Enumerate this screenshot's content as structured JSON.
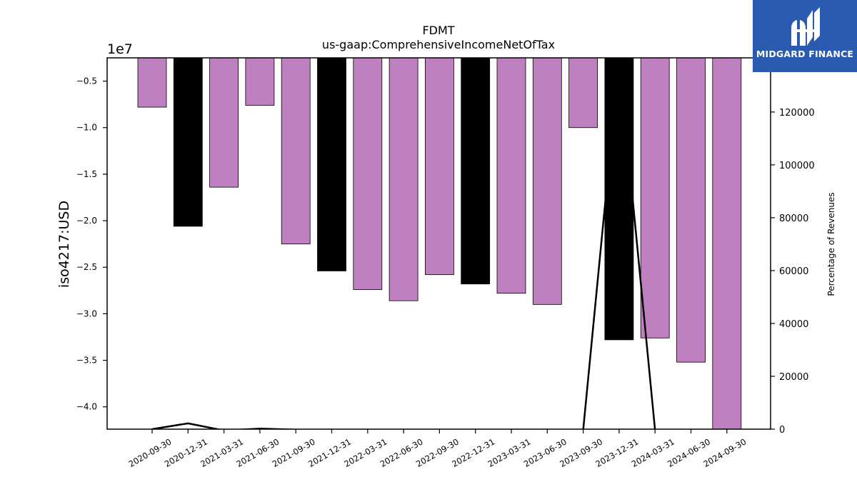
{
  "brand": {
    "name": "MIDGARD FINANCE",
    "color": "#2b5bb0"
  },
  "chart_data": {
    "type": "bar",
    "title": "FDMT",
    "subtitle": "us-gaap:ComprehensiveIncomeNetOfTax",
    "ylabel": "iso4217:USD",
    "y_offset_label": "1e7",
    "y2label": "Percentage of Revenues",
    "ylim": [
      -42400000,
      -2500000
    ],
    "y2lim": [
      0,
      140500
    ],
    "yticks": [
      -0.5,
      -1.0,
      -1.5,
      -2.0,
      -2.5,
      -3.0,
      -3.5,
      -4.0
    ],
    "y2ticks": [
      0,
      20000,
      40000,
      60000,
      80000,
      100000,
      120000
    ],
    "grid": false,
    "categories": [
      "2020-09-30",
      "2020-12-31",
      "2021-03-31",
      "2021-06-30",
      "2021-09-30",
      "2021-12-31",
      "2022-03-31",
      "2022-06-30",
      "2022-09-30",
      "2022-12-31",
      "2023-03-31",
      "2023-06-30",
      "2023-09-30",
      "2023-12-31",
      "2024-03-31",
      "2024-06-30",
      "2024-09-30"
    ],
    "series": [
      {
        "type": "bar",
        "axis": "left",
        "values": [
          -7800000,
          -20600000,
          -16400000,
          -7600000,
          -22500000,
          -25400000,
          -27400000,
          -28600000,
          -25800000,
          -26800000,
          -27800000,
          -29000000,
          -10000000,
          -32800000,
          -32600000,
          -35200000,
          -42400000
        ],
        "colors": [
          "#bf80bf",
          "#000000",
          "#bf80bf",
          "#bf80bf",
          "#bf80bf",
          "#000000",
          "#bf80bf",
          "#bf80bf",
          "#bf80bf",
          "#000000",
          "#bf80bf",
          "#bf80bf",
          "#bf80bf",
          "#000000",
          "#bf80bf",
          "#bf80bf",
          "#bf80bf"
        ]
      },
      {
        "type": "line",
        "axis": "right",
        "color": "#000000",
        "values": [
          0,
          2200,
          -500,
          200,
          -200,
          -300,
          -300,
          -300,
          -300,
          -300,
          -300,
          -300,
          -300,
          140000,
          -300,
          -300,
          -300
        ]
      }
    ]
  }
}
